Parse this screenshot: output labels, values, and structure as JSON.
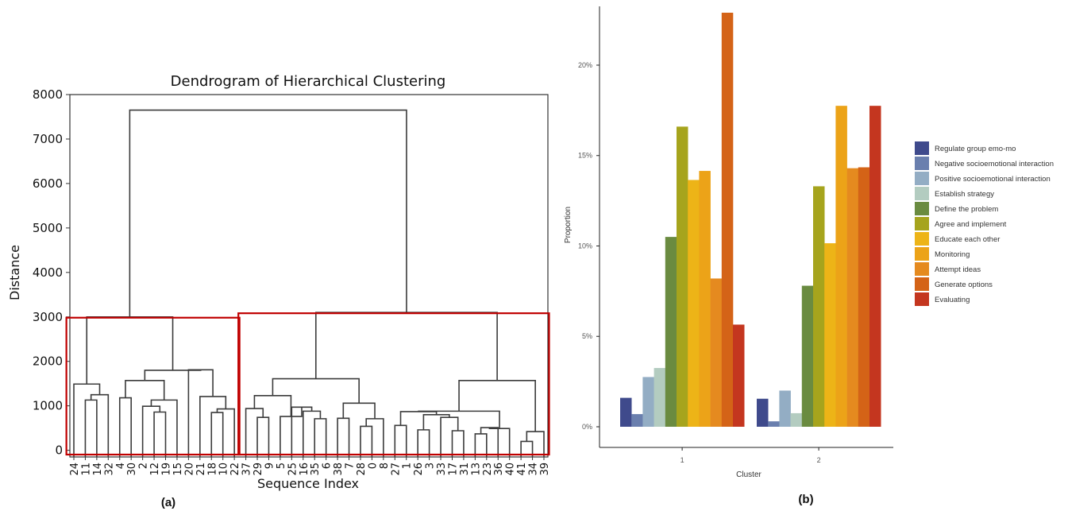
{
  "panel_a_label": "(a)",
  "panel_b_label": "(b)",
  "chart_data": [
    {
      "type": "dendrogram",
      "title": "Dendrogram of Hierarchical Clustering",
      "xlabel": "Sequence Index",
      "ylabel": "Distance",
      "ylim": [
        -150,
        8000
      ],
      "yticks": [
        0,
        1000,
        2000,
        3000,
        4000,
        5000,
        6000,
        7000,
        8000
      ],
      "leaves": [
        "24",
        "11",
        "14",
        "32",
        "4",
        "30",
        "2",
        "12",
        "19",
        "15",
        "20",
        "21",
        "18",
        "10",
        "22",
        "37",
        "29",
        "9",
        "5",
        "25",
        "16",
        "35",
        "6",
        "38",
        "7",
        "28",
        "0",
        "8",
        "27",
        "1",
        "26",
        "3",
        "33",
        "17",
        "31",
        "13",
        "23",
        "36",
        "40",
        "41",
        "34",
        "39"
      ],
      "merges": [
        {
          "a": "L1",
          "b": "L2",
          "h": 1130
        },
        {
          "a": "L3",
          "b": "M0",
          "h": 1250
        },
        {
          "a": "L0",
          "b": "M1",
          "h": 1490
        },
        {
          "a": "L4",
          "b": "L5",
          "h": 1180
        },
        {
          "a": "L7",
          "b": "L8",
          "h": 860
        },
        {
          "a": "L6",
          "b": "M4",
          "h": 990
        },
        {
          "a": "L9",
          "b": "M5",
          "h": 1130
        },
        {
          "a": "M3",
          "b": "M6",
          "h": 1570
        },
        {
          "a": "L12",
          "b": "L13",
          "h": 850
        },
        {
          "a": "L14",
          "b": "M8",
          "h": 930
        },
        {
          "a": "L11",
          "b": "M9",
          "h": 1210
        },
        {
          "a": "L10",
          "b": "M10",
          "h": 1810
        },
        {
          "a": "M7",
          "b": "M11",
          "h": 1800
        },
        {
          "a": "M2",
          "b": "M12",
          "h": 3000
        },
        {
          "a": "L16",
          "b": "L17",
          "h": 740
        },
        {
          "a": "L15",
          "b": "M14",
          "h": 940
        },
        {
          "a": "L21",
          "b": "L22",
          "h": 710
        },
        {
          "a": "L20",
          "b": "M16",
          "h": 880
        },
        {
          "a": "L19",
          "b": "M17",
          "h": 970
        },
        {
          "a": "L18",
          "b": "M18",
          "h": 760
        },
        {
          "a": "M15",
          "b": "M19",
          "h": 1230
        },
        {
          "a": "L23",
          "b": "L24",
          "h": 720
        },
        {
          "a": "L25",
          "b": "L26",
          "h": 540
        },
        {
          "a": "M22",
          "b": "L27",
          "h": 710
        },
        {
          "a": "M21",
          "b": "M23",
          "h": 1060
        },
        {
          "a": "M20",
          "b": "M24",
          "h": 1610
        },
        {
          "a": "L28",
          "b": "L29",
          "h": 560
        },
        {
          "a": "L30",
          "b": "L31",
          "h": 460
        },
        {
          "a": "L33",
          "b": "L34",
          "h": 440
        },
        {
          "a": "L32",
          "b": "M28",
          "h": 740
        },
        {
          "a": "M27",
          "b": "M29",
          "h": 800
        },
        {
          "a": "L35",
          "b": "L36",
          "h": 370
        },
        {
          "a": "M31",
          "b": "L37",
          "h": 510
        },
        {
          "a": "M32",
          "b": "L38",
          "h": 490
        },
        {
          "a": "M26",
          "b": "M30",
          "h": 870
        },
        {
          "a": "M34",
          "b": "M33",
          "h": 880
        },
        {
          "a": "L39",
          "b": "L40",
          "h": 200
        },
        {
          "a": "M36",
          "b": "L41",
          "h": 420
        },
        {
          "a": "M35",
          "b": "M37",
          "h": 1570
        },
        {
          "a": "M25",
          "b": "M38",
          "h": 3100
        },
        {
          "a": "M13",
          "b": "M39",
          "h": 7650
        }
      ],
      "highlight_boxes": [
        {
          "from_leaf": "24",
          "to_leaf": "22",
          "color": "#c00000"
        },
        {
          "from_leaf": "37",
          "to_leaf": "39",
          "color": "#c00000"
        }
      ]
    },
    {
      "type": "bar",
      "xlabel": "Cluster",
      "ylabel": "Proportion",
      "categories": [
        "1",
        "2"
      ],
      "ylim": [
        -0.5,
        22.9
      ],
      "yticks": [
        0,
        5,
        10,
        15,
        20
      ],
      "ytick_labels": [
        "0%",
        "5%",
        "10%",
        "15%",
        "20%"
      ],
      "legend_position": "right",
      "series": [
        {
          "name": "Regulate group emo-mo",
          "color": "#3f4a8c",
          "values": [
            1.6,
            1.55
          ]
        },
        {
          "name": "Negative socioemotional interaction",
          "color": "#6a7fae",
          "values": [
            0.7,
            0.3
          ]
        },
        {
          "name": "Positive socioemotional interaction",
          "color": "#93adc4",
          "values": [
            2.75,
            2.0
          ]
        },
        {
          "name": "Establish strategy",
          "color": "#b3ccc0",
          "values": [
            3.25,
            0.75
          ]
        },
        {
          "name": "Define the problem",
          "color": "#6a8b40",
          "values": [
            10.5,
            7.8
          ]
        },
        {
          "name": "Agree and implement",
          "color": "#a6a41d",
          "values": [
            16.6,
            13.3
          ]
        },
        {
          "name": "Educate each other",
          "color": "#edb417",
          "values": [
            13.65,
            10.15
          ]
        },
        {
          "name": "Monitoring",
          "color": "#eca318",
          "values": [
            14.15,
            17.75
          ]
        },
        {
          "name": "Attempt ideas",
          "color": "#e58a1f",
          "values": [
            8.2,
            14.3
          ]
        },
        {
          "name": "Generate options",
          "color": "#d46317",
          "values": [
            22.9,
            14.35
          ]
        },
        {
          "name": "Evaluating",
          "color": "#c4361f",
          "values": [
            5.65,
            17.75
          ]
        }
      ]
    }
  ]
}
